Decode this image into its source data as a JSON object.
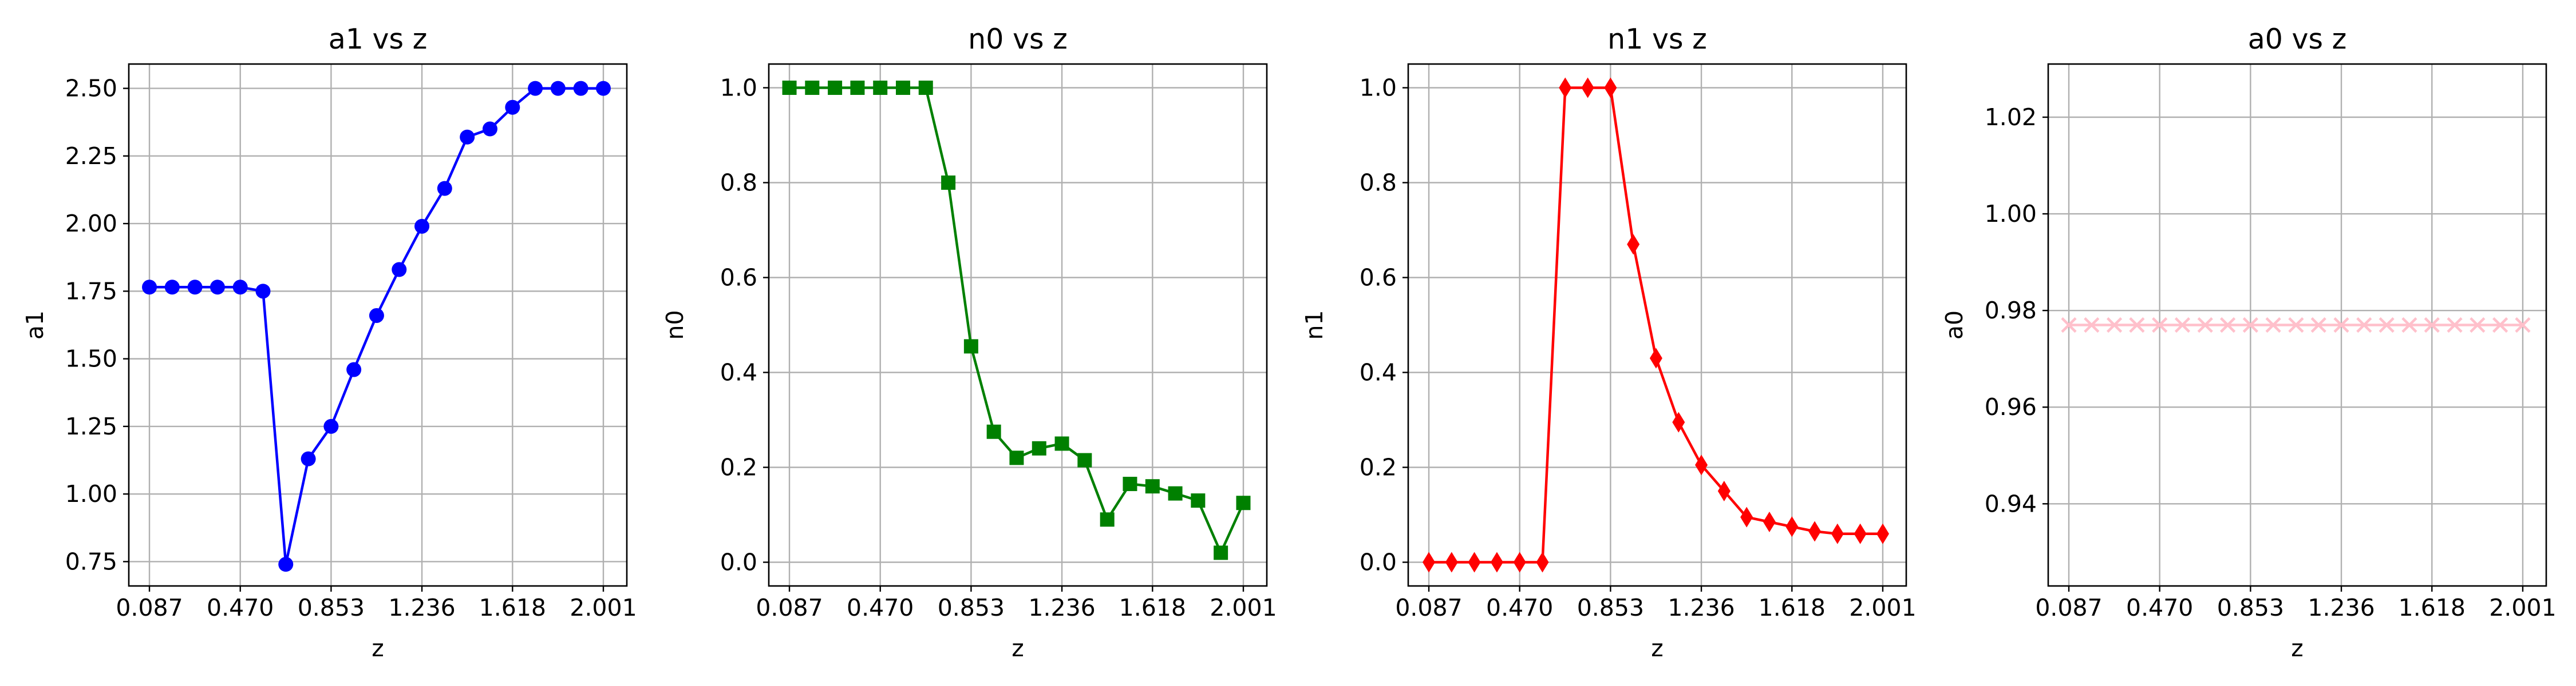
{
  "x_tick_labels": [
    "0.087",
    "0.470",
    "0.853",
    "1.236",
    "1.618",
    "2.001"
  ],
  "chart_data": [
    {
      "type": "line",
      "title": "a1 vs z",
      "xlabel": "z",
      "ylabel": "a1",
      "xlim": [
        0.0,
        2.1
      ],
      "ylim": [
        0.66,
        2.59
      ],
      "grid": true,
      "color": "#0000ff",
      "marker": "circle",
      "xticks": [
        0.087,
        0.47,
        0.853,
        1.236,
        1.618,
        2.001
      ],
      "yticks": [
        0.75,
        1.0,
        1.25,
        1.5,
        1.75,
        2.0,
        2.25,
        2.5
      ],
      "ytick_labels": [
        "0.75",
        "1.00",
        "1.25",
        "1.50",
        "1.75",
        "2.00",
        "2.25",
        "2.50"
      ],
      "x": [
        0.087,
        0.183,
        0.279,
        0.374,
        0.47,
        0.566,
        0.662,
        0.757,
        0.853,
        0.949,
        1.045,
        1.14,
        1.236,
        1.332,
        1.427,
        1.523,
        1.618,
        1.714,
        1.81,
        1.906,
        2.001
      ],
      "y": [
        1.765,
        1.765,
        1.765,
        1.765,
        1.765,
        1.75,
        0.74,
        1.13,
        1.25,
        1.46,
        1.66,
        1.83,
        1.99,
        2.13,
        2.32,
        2.35,
        2.43,
        2.5,
        2.5,
        2.5,
        2.5
      ]
    },
    {
      "type": "line",
      "title": "n0 vs z",
      "xlabel": "z",
      "ylabel": "n0",
      "xlim": [
        0.0,
        2.1
      ],
      "ylim": [
        -0.05,
        1.05
      ],
      "grid": true,
      "color": "#008000",
      "marker": "square",
      "xticks": [
        0.087,
        0.47,
        0.853,
        1.236,
        1.618,
        2.001
      ],
      "yticks": [
        0.0,
        0.2,
        0.4,
        0.6,
        0.8,
        1.0
      ],
      "ytick_labels": [
        "0.0",
        "0.2",
        "0.4",
        "0.6",
        "0.8",
        "1.0"
      ],
      "x": [
        0.087,
        0.183,
        0.279,
        0.374,
        0.47,
        0.566,
        0.662,
        0.757,
        0.853,
        0.949,
        1.045,
        1.14,
        1.236,
        1.332,
        1.427,
        1.523,
        1.618,
        1.714,
        1.81,
        1.906,
        2.001
      ],
      "y": [
        1.0,
        1.0,
        1.0,
        1.0,
        1.0,
        1.0,
        1.0,
        0.8,
        0.455,
        0.275,
        0.22,
        0.24,
        0.25,
        0.215,
        0.09,
        0.165,
        0.16,
        0.145,
        0.13,
        0.02,
        0.125
      ]
    },
    {
      "type": "line",
      "title": "n1 vs z",
      "xlabel": "z",
      "ylabel": "n1",
      "xlim": [
        0.0,
        2.1
      ],
      "ylim": [
        -0.05,
        1.05
      ],
      "grid": true,
      "color": "#ff0000",
      "marker": "diamond",
      "xticks": [
        0.087,
        0.47,
        0.853,
        1.236,
        1.618,
        2.001
      ],
      "yticks": [
        0.0,
        0.2,
        0.4,
        0.6,
        0.8,
        1.0
      ],
      "ytick_labels": [
        "0.0",
        "0.2",
        "0.4",
        "0.6",
        "0.8",
        "1.0"
      ],
      "x": [
        0.087,
        0.183,
        0.279,
        0.374,
        0.47,
        0.566,
        0.662,
        0.757,
        0.853,
        0.949,
        1.045,
        1.14,
        1.236,
        1.332,
        1.427,
        1.523,
        1.618,
        1.714,
        1.81,
        1.906,
        2.001
      ],
      "y": [
        0.0,
        0.0,
        0.0,
        0.0,
        0.0,
        0.0,
        1.0,
        1.0,
        1.0,
        0.67,
        0.43,
        0.295,
        0.205,
        0.15,
        0.095,
        0.085,
        0.075,
        0.065,
        0.06,
        0.06,
        0.06
      ]
    },
    {
      "type": "line",
      "title": "a0 vs z",
      "xlabel": "z",
      "ylabel": "a0",
      "xlim": [
        0.0,
        2.1
      ],
      "ylim": [
        0.923,
        1.031
      ],
      "grid": true,
      "color": "#ffc0cb",
      "marker": "x",
      "xticks": [
        0.087,
        0.47,
        0.853,
        1.236,
        1.618,
        2.001
      ],
      "yticks": [
        0.94,
        0.96,
        0.98,
        1.0,
        1.02
      ],
      "ytick_labels": [
        "0.94",
        "0.96",
        "0.98",
        "1.00",
        "1.02"
      ],
      "x": [
        0.087,
        0.183,
        0.279,
        0.374,
        0.47,
        0.566,
        0.662,
        0.757,
        0.853,
        0.949,
        1.045,
        1.14,
        1.236,
        1.332,
        1.427,
        1.523,
        1.618,
        1.714,
        1.81,
        1.906,
        2.001
      ],
      "y": [
        0.977,
        0.977,
        0.977,
        0.977,
        0.977,
        0.977,
        0.977,
        0.977,
        0.977,
        0.977,
        0.977,
        0.977,
        0.977,
        0.977,
        0.977,
        0.977,
        0.977,
        0.977,
        0.977,
        0.977,
        0.977
      ]
    }
  ]
}
